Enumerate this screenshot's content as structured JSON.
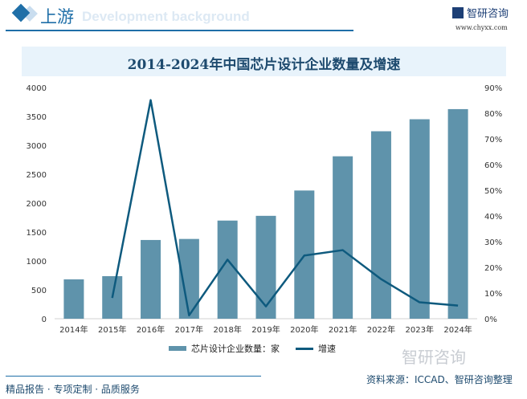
{
  "header": {
    "section": "上游",
    "background_text": "Development background",
    "logo": "智研咨询",
    "url": "www.chyxx.com"
  },
  "footer": {
    "slogan": "精品报告 · 专项定制 · 品质服务",
    "source": "资料来源：ICCAD、智研咨询整理",
    "watermark": "智研咨询"
  },
  "colors": {
    "bar": "#5f93ab",
    "line": "#0e5a7e",
    "accent": "#1f6fa8"
  },
  "chart_data": {
    "type": "bar+line",
    "title": "2014-2024年中国芯片设计企业数量及增速",
    "categories": [
      "2014年",
      "2015年",
      "2016年",
      "2017年",
      "2018年",
      "2019年",
      "2020年",
      "2021年",
      "2022年",
      "2023年",
      "2024年"
    ],
    "series": [
      {
        "name": "芯片设计企业数量：家",
        "type": "bar",
        "axis": "left",
        "values": [
          681,
          736,
          1362,
          1380,
          1698,
          1780,
          2218,
          2810,
          3243,
          3451,
          3626
        ]
      },
      {
        "name": "增速",
        "type": "line",
        "axis": "right",
        "values": [
          null,
          8.1,
          85.1,
          1.3,
          23.0,
          4.8,
          24.6,
          26.7,
          15.4,
          6.4,
          5.1
        ]
      }
    ],
    "yleft": {
      "range": [
        0,
        4000
      ],
      "ticks": [
        "0",
        "500",
        "1000",
        "1500",
        "2000",
        "2500",
        "3000",
        "3500",
        "4000"
      ]
    },
    "yright": {
      "range": [
        0,
        90
      ],
      "ticks": [
        "0%",
        "10%",
        "20%",
        "30%",
        "40%",
        "50%",
        "60%",
        "70%",
        "80%",
        "90%"
      ]
    },
    "grid": false,
    "legend": "bottom"
  }
}
